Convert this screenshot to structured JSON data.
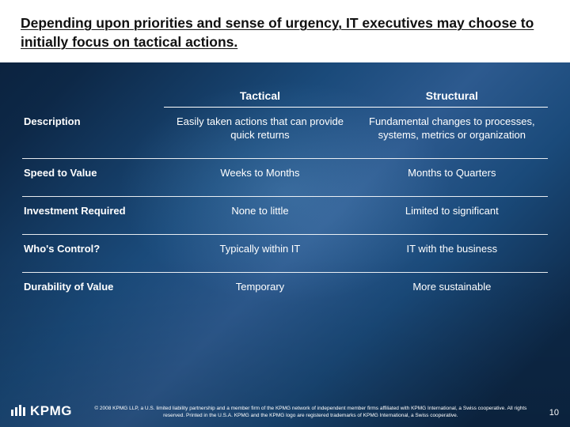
{
  "slide": {
    "title": "Depending upon priorities and sense of urgency, IT executives may choose to initially focus on tactical actions.",
    "title_fontsize": 17.5,
    "title_color": "#111111",
    "title_bg": "#ffffff",
    "background_gradient": [
      "#0a1f3a",
      "#0d2847",
      "#1a4a7a",
      "#2d5a8f"
    ],
    "text_color": "#ffffff",
    "page_number": "10"
  },
  "table": {
    "type": "table",
    "header_fontsize": 14,
    "cell_fontsize": 13,
    "rule_color": "#ffffff",
    "col_widths_pct": [
      27,
      36.5,
      36.5
    ],
    "columns": [
      "",
      "Tactical",
      "Structural"
    ],
    "rows": [
      {
        "label": "Description",
        "tactical": "Easily taken actions that can provide quick returns",
        "structural": "Fundamental changes to processes, systems, metrics or organization"
      },
      {
        "label": "Speed to Value",
        "tactical": "Weeks to Months",
        "structural": "Months to Quarters"
      },
      {
        "label": "Investment Required",
        "tactical": "None to little",
        "structural": "Limited to significant"
      },
      {
        "label": "Who's Control?",
        "tactical": "Typically within IT",
        "structural": "IT with the business"
      },
      {
        "label": "Durability of Value",
        "tactical": "Temporary",
        "structural": "More sustainable"
      }
    ]
  },
  "footer": {
    "logo_text": "KPMG",
    "logo_bar_heights": [
      8,
      11,
      14,
      11
    ],
    "copyright": "© 2008 KPMG LLP, a U.S. limited liability partnership and a member firm of the KPMG network of independent member firms affiliated with KPMG International, a Swiss cooperative. All rights reserved. Printed in the U.S.A. KPMG and the KPMG logo are registered trademarks of KPMG International, a Swiss cooperative."
  }
}
